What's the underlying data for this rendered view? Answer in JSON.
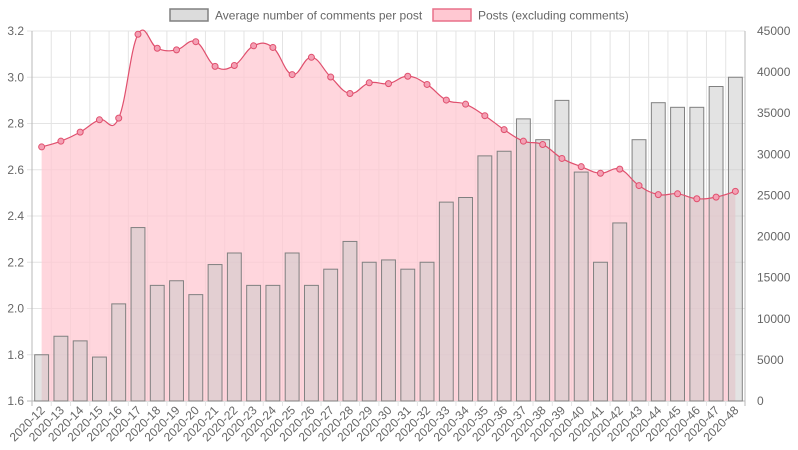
{
  "chart_data": {
    "type": "bar",
    "categories": [
      "2020-12",
      "2020-13",
      "2020-14",
      "2020-15",
      "2020-16",
      "2020-17",
      "2020-18",
      "2020-19",
      "2020-20",
      "2020-21",
      "2020-22",
      "2020-23",
      "2020-24",
      "2020-25",
      "2020-26",
      "2020-27",
      "2020-28",
      "2020-29",
      "2020-30",
      "2020-31",
      "2020-32",
      "2020-33",
      "2020-34",
      "2020-35",
      "2020-36",
      "2020-37",
      "2020-38",
      "2020-39",
      "2020-40",
      "2020-41",
      "2020-42",
      "2020-43",
      "2020-44",
      "2020-45",
      "2020-46",
      "2020-47",
      "2020-48"
    ],
    "series": [
      {
        "name": "Average number of comments per post",
        "type": "bar",
        "axis": "left",
        "color": "#c8c8c8",
        "border_color": "#808080",
        "values": [
          1.8,
          1.88,
          1.86,
          1.79,
          2.02,
          2.35,
          2.1,
          2.12,
          2.06,
          2.19,
          2.24,
          2.1,
          2.1,
          2.24,
          2.1,
          2.17,
          2.29,
          2.2,
          2.21,
          2.17,
          2.2,
          2.46,
          2.48,
          2.66,
          2.68,
          2.82,
          2.73,
          2.9,
          2.59,
          2.2,
          2.37,
          2.73,
          2.89,
          2.87,
          2.87,
          2.96,
          3.0
        ]
      },
      {
        "name": "Posts (excluding comments)",
        "type": "area",
        "axis": "right",
        "color": "#ff6384",
        "fill_color": "#ffc8d2",
        "values": [
          30900,
          31600,
          32700,
          34200,
          34400,
          44600,
          42900,
          42700,
          43700,
          40700,
          40800,
          43200,
          43000,
          39700,
          41800,
          39400,
          37400,
          38700,
          38600,
          39500,
          38500,
          36600,
          36100,
          34700,
          33000,
          31600,
          31200,
          29500,
          28500,
          27700,
          28200,
          26200,
          25100,
          25200,
          24600,
          24800,
          25500
        ]
      }
    ],
    "y_left": {
      "min": 1.6,
      "max": 3.2,
      "ticks": [
        "1.6",
        "1.8",
        "2.0",
        "2.2",
        "2.4",
        "2.6",
        "2.8",
        "3.0",
        "3.2"
      ]
    },
    "y_right": {
      "min": 0,
      "max": 45000,
      "ticks": [
        "0",
        "5000",
        "10000",
        "15000",
        "20000",
        "25000",
        "30000",
        "35000",
        "40000",
        "45000"
      ]
    },
    "grid": true,
    "legend_position": "top"
  }
}
